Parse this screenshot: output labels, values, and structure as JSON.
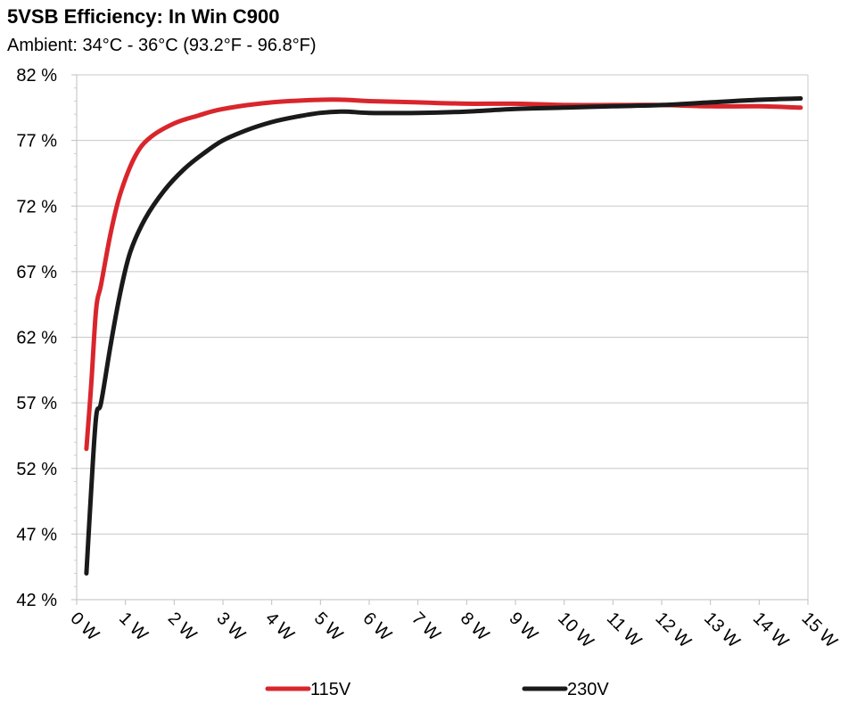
{
  "title": "5VSB Efficiency: In Win C900",
  "subtitle": "Ambient: 34°C - 36°C (93.2°F - 96.8°F)",
  "chart_data": {
    "type": "line",
    "title": "5VSB Efficiency: In Win C900",
    "subtitle": "Ambient: 34°C - 36°C (93.2°F - 96.8°F)",
    "xlabel": "",
    "ylabel": "",
    "xlim": [
      0,
      15
    ],
    "ylim": [
      42,
      82
    ],
    "x_ticks": [
      0,
      1,
      2,
      3,
      4,
      5,
      6,
      7,
      8,
      9,
      10,
      11,
      12,
      13,
      14,
      15
    ],
    "x_tick_labels": [
      "0 W",
      "1 W",
      "2 W",
      "3 W",
      "4 W",
      "5 W",
      "6 W",
      "7 W",
      "8 W",
      "9 W",
      "10 W",
      "11 W",
      "12 W",
      "13 W",
      "14 W",
      "15 W"
    ],
    "y_ticks": [
      42,
      47,
      52,
      57,
      62,
      67,
      72,
      77,
      82
    ],
    "y_tick_labels": [
      "42 %",
      "47 %",
      "52 %",
      "57 %",
      "62 %",
      "67 %",
      "72 %",
      "77 %",
      "82 %"
    ],
    "grid": "horizontal",
    "legend_position": "bottom",
    "series": [
      {
        "name": "115V",
        "color": "#d9262c",
        "points": [
          [
            0.2,
            53.5
          ],
          [
            0.3,
            58.5
          ],
          [
            0.4,
            64.2
          ],
          [
            0.5,
            66.0
          ],
          [
            0.7,
            70.0
          ],
          [
            0.9,
            73.0
          ],
          [
            1.2,
            75.8
          ],
          [
            1.5,
            77.2
          ],
          [
            2.0,
            78.3
          ],
          [
            2.5,
            78.9
          ],
          [
            3.0,
            79.4
          ],
          [
            4.0,
            79.9
          ],
          [
            5.0,
            80.1
          ],
          [
            5.5,
            80.1
          ],
          [
            6.0,
            80.0
          ],
          [
            7.0,
            79.9
          ],
          [
            8.0,
            79.8
          ],
          [
            9.0,
            79.8
          ],
          [
            10.0,
            79.7
          ],
          [
            11.0,
            79.7
          ],
          [
            12.0,
            79.7
          ],
          [
            13.0,
            79.6
          ],
          [
            14.0,
            79.6
          ],
          [
            14.85,
            79.5
          ]
        ]
      },
      {
        "name": "230V",
        "color": "#1a1a1a",
        "points": [
          [
            0.2,
            44.0
          ],
          [
            0.3,
            50.5
          ],
          [
            0.4,
            56.0
          ],
          [
            0.5,
            57.0
          ],
          [
            0.7,
            61.5
          ],
          [
            0.9,
            65.5
          ],
          [
            1.1,
            68.5
          ],
          [
            1.4,
            71.0
          ],
          [
            1.8,
            73.2
          ],
          [
            2.2,
            74.8
          ],
          [
            2.6,
            76.0
          ],
          [
            3.0,
            77.0
          ],
          [
            3.5,
            77.8
          ],
          [
            4.0,
            78.4
          ],
          [
            4.5,
            78.8
          ],
          [
            5.0,
            79.1
          ],
          [
            5.5,
            79.2
          ],
          [
            6.0,
            79.1
          ],
          [
            7.0,
            79.1
          ],
          [
            8.0,
            79.2
          ],
          [
            9.0,
            79.4
          ],
          [
            10.0,
            79.5
          ],
          [
            11.0,
            79.6
          ],
          [
            12.0,
            79.7
          ],
          [
            13.0,
            79.9
          ],
          [
            14.0,
            80.1
          ],
          [
            14.85,
            80.2
          ]
        ]
      }
    ]
  }
}
